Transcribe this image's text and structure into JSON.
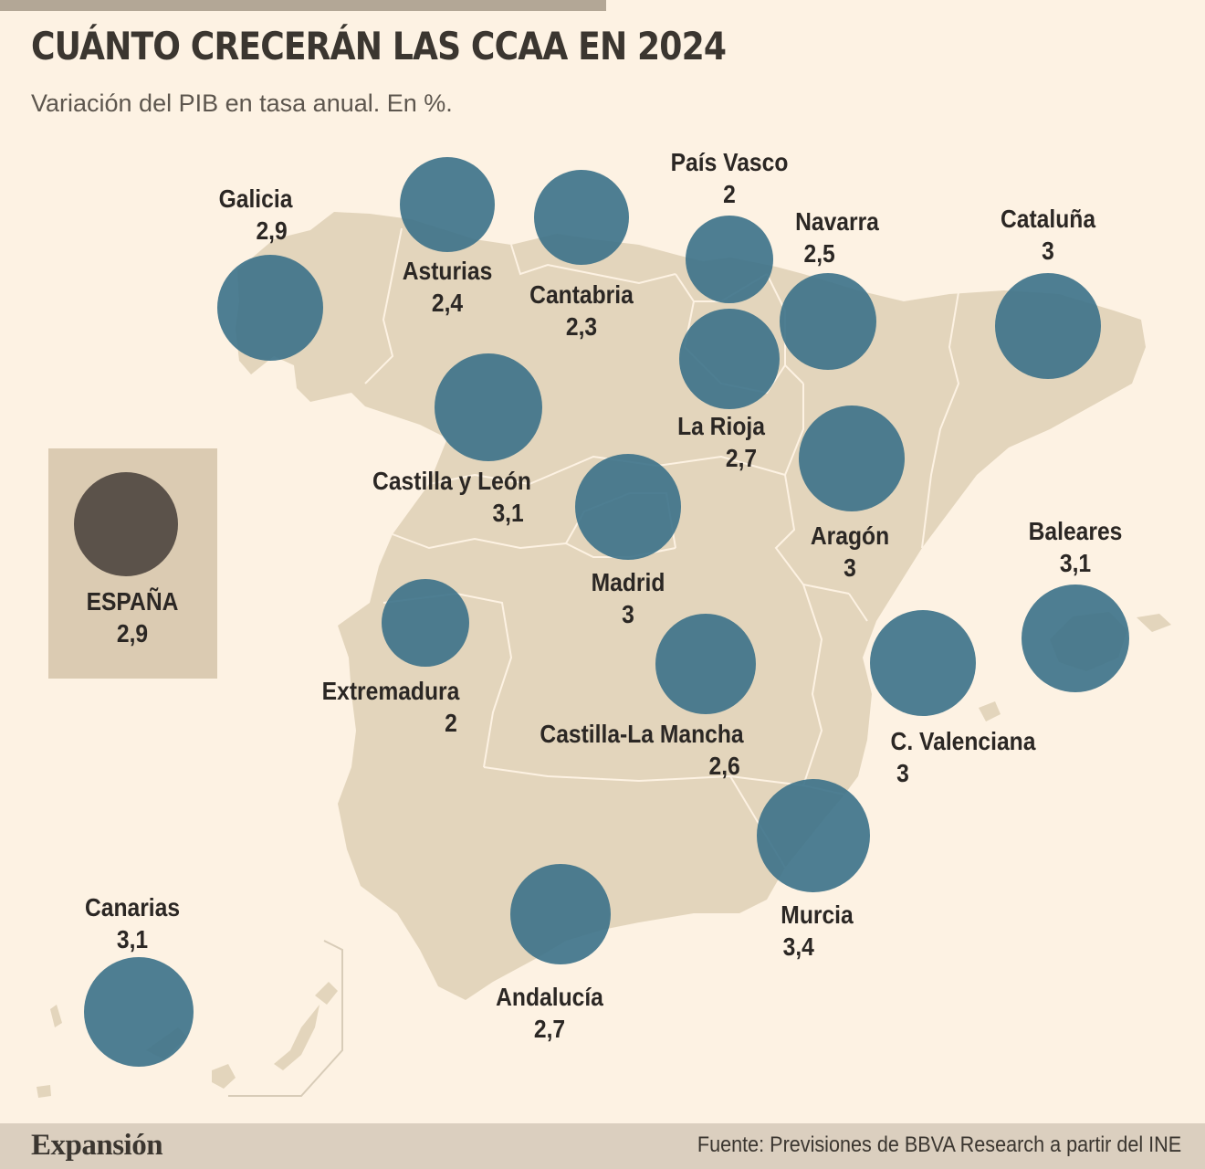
{
  "header": {
    "title": "CUÁNTO CRECERÁN LAS CCAA EN 2024",
    "subtitle": "Variación del PIB en tasa anual. En %."
  },
  "colors": {
    "bubble": "#3b7188",
    "national_bubble": "#5b524a",
    "land": "#e3d5bc",
    "background": "#fdf2e3",
    "border": "#fdf2e3"
  },
  "legend_box": {
    "name": "ESPAÑA",
    "value": "2,9"
  },
  "regions": [
    {
      "id": "galicia",
      "name": "Galicia",
      "value": "2,9"
    },
    {
      "id": "asturias",
      "name": "Asturias",
      "value": "2,4"
    },
    {
      "id": "cantabria",
      "name": "Cantabria",
      "value": "2,3"
    },
    {
      "id": "pais-vasco",
      "name": "País Vasco",
      "value": "2"
    },
    {
      "id": "navarra",
      "name": "Navarra",
      "value": "2,5"
    },
    {
      "id": "cataluna",
      "name": "Cataluña",
      "value": "3"
    },
    {
      "id": "la-rioja",
      "name": "La Rioja",
      "value": "2,7"
    },
    {
      "id": "castilla-leon",
      "name": "Castilla y León",
      "value": "3,1"
    },
    {
      "id": "madrid",
      "name": "Madrid",
      "value": "3"
    },
    {
      "id": "aragon",
      "name": "Aragón",
      "value": "3"
    },
    {
      "id": "baleares",
      "name": "Baleares",
      "value": "3,1"
    },
    {
      "id": "extremadura",
      "name": "Extremadura",
      "value": "2"
    },
    {
      "id": "castilla-la-mancha",
      "name": "Castilla-La Mancha",
      "value": "2,6"
    },
    {
      "id": "c-valenciana",
      "name": "C. Valenciana",
      "value": "3"
    },
    {
      "id": "murcia",
      "name": "Murcia",
      "value": "3,4"
    },
    {
      "id": "andalucia",
      "name": "Andalucía",
      "value": "2,7"
    },
    {
      "id": "canarias",
      "name": "Canarias",
      "value": "3,1"
    }
  ],
  "footer": {
    "brand": "Expansión",
    "source": "Fuente:  Previsiones de BBVA Research a partir del INE"
  }
}
